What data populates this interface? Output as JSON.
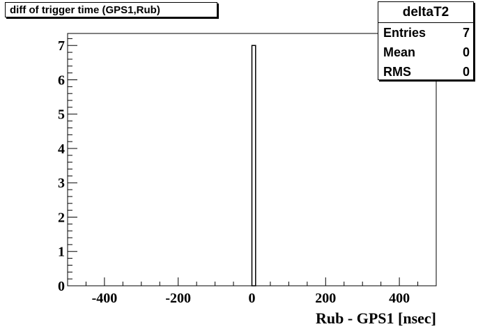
{
  "title": "diff of trigger time (GPS1,Rub)",
  "stats": {
    "name": "deltaT2",
    "rows": [
      {
        "label": "Entries",
        "value": "7"
      },
      {
        "label": "Mean",
        "value": "0"
      },
      {
        "label": "RMS",
        "value": "0"
      }
    ]
  },
  "chart_data": {
    "type": "bar",
    "xlabel": "Rub - GPS1 [nsec]",
    "ylabel": "",
    "xlim": [
      -500,
      500
    ],
    "ylim": [
      0,
      7.35
    ],
    "x_ticks": [
      -400,
      -200,
      0,
      200,
      400
    ],
    "x_tick_labels": [
      "-400",
      "-200",
      "0",
      "200",
      "400"
    ],
    "y_ticks": [
      0,
      1,
      2,
      3,
      4,
      5,
      6,
      7
    ],
    "y_tick_labels": [
      "0",
      "1",
      "2",
      "3",
      "4",
      "5",
      "6",
      "7"
    ],
    "bins": [
      {
        "x_low": 0,
        "x_high": 10,
        "count": 7
      }
    ],
    "grid": false
  }
}
